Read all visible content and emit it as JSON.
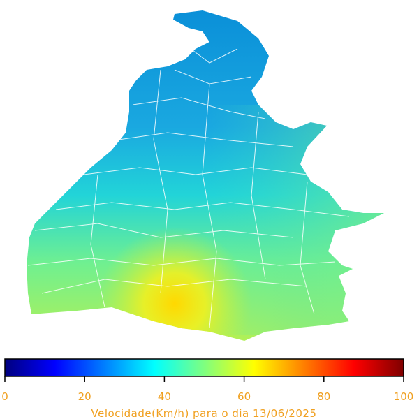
{
  "colorbar": {
    "range": [
      0,
      100
    ],
    "ticks": [
      0,
      20,
      40,
      60,
      80,
      100
    ],
    "label": "Velocidade(Km/h) para o dia 13/06/2025",
    "colormap": "jet"
  }
}
